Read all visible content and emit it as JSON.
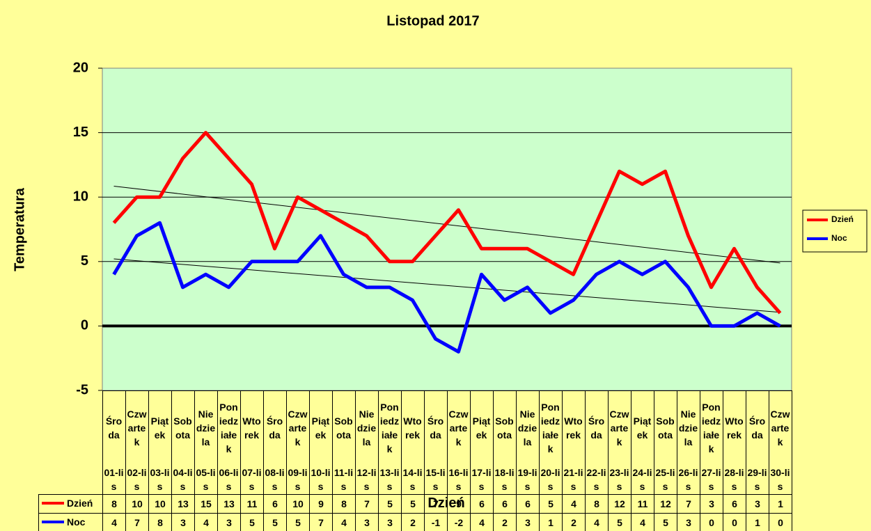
{
  "chart_data": {
    "type": "line",
    "title": "Listopad 2017",
    "x_label": "Dzień",
    "y_label": "Temperatura",
    "categories": [
      "Środa",
      "Czwartek",
      "Piątek",
      "Sobota",
      "Niedziela",
      "Poniedziałek",
      "Wtorek",
      "Środa",
      "Czwartek",
      "Piątek",
      "Sobota",
      "Niedziela",
      "Poniedziałek",
      "Wtorek",
      "Środa",
      "Czwartek",
      "Piątek",
      "Sobota",
      "Niedziela",
      "Poniedziałek",
      "Wtorek",
      "Środa",
      "Czwartek",
      "Piątek",
      "Sobota",
      "Niedziela",
      "Poniedziałek",
      "Wtorek",
      "Środa",
      "Czwartek"
    ],
    "category_dates": [
      "01-lis",
      "02-lis",
      "03-lis",
      "04-lis",
      "05-lis",
      "06-lis",
      "07-lis",
      "08-lis",
      "09-lis",
      "10-lis",
      "11-lis",
      "12-lis",
      "13-lis",
      "14-lis",
      "15-lis",
      "16-lis",
      "17-lis",
      "18-lis",
      "19-lis",
      "20-lis",
      "21-lis",
      "22-lis",
      "23-lis",
      "24-lis",
      "25-lis",
      "26-lis",
      "27-lis",
      "28-lis",
      "29-lis",
      "30-lis"
    ],
    "series": [
      {
        "name": "Dzień",
        "color": "#ff0000",
        "values": [
          8,
          10,
          10,
          13,
          15,
          13,
          11,
          6,
          10,
          9,
          8,
          7,
          5,
          5,
          7,
          9,
          6,
          6,
          6,
          5,
          4,
          8,
          12,
          11,
          12,
          7,
          3,
          6,
          3,
          1
        ]
      },
      {
        "name": "Noc",
        "color": "#0000ff",
        "values": [
          4,
          7,
          8,
          3,
          4,
          3,
          5,
          5,
          5,
          7,
          4,
          3,
          3,
          2,
          -1,
          -2,
          4,
          2,
          3,
          1,
          2,
          4,
          5,
          4,
          5,
          3,
          0,
          0,
          1,
          0
        ]
      }
    ],
    "ylim": [
      -5,
      20
    ],
    "yticks": [
      -5,
      0,
      5,
      10,
      15,
      20
    ],
    "grid": true,
    "trendline": true,
    "legend": "right",
    "data_table": true
  }
}
